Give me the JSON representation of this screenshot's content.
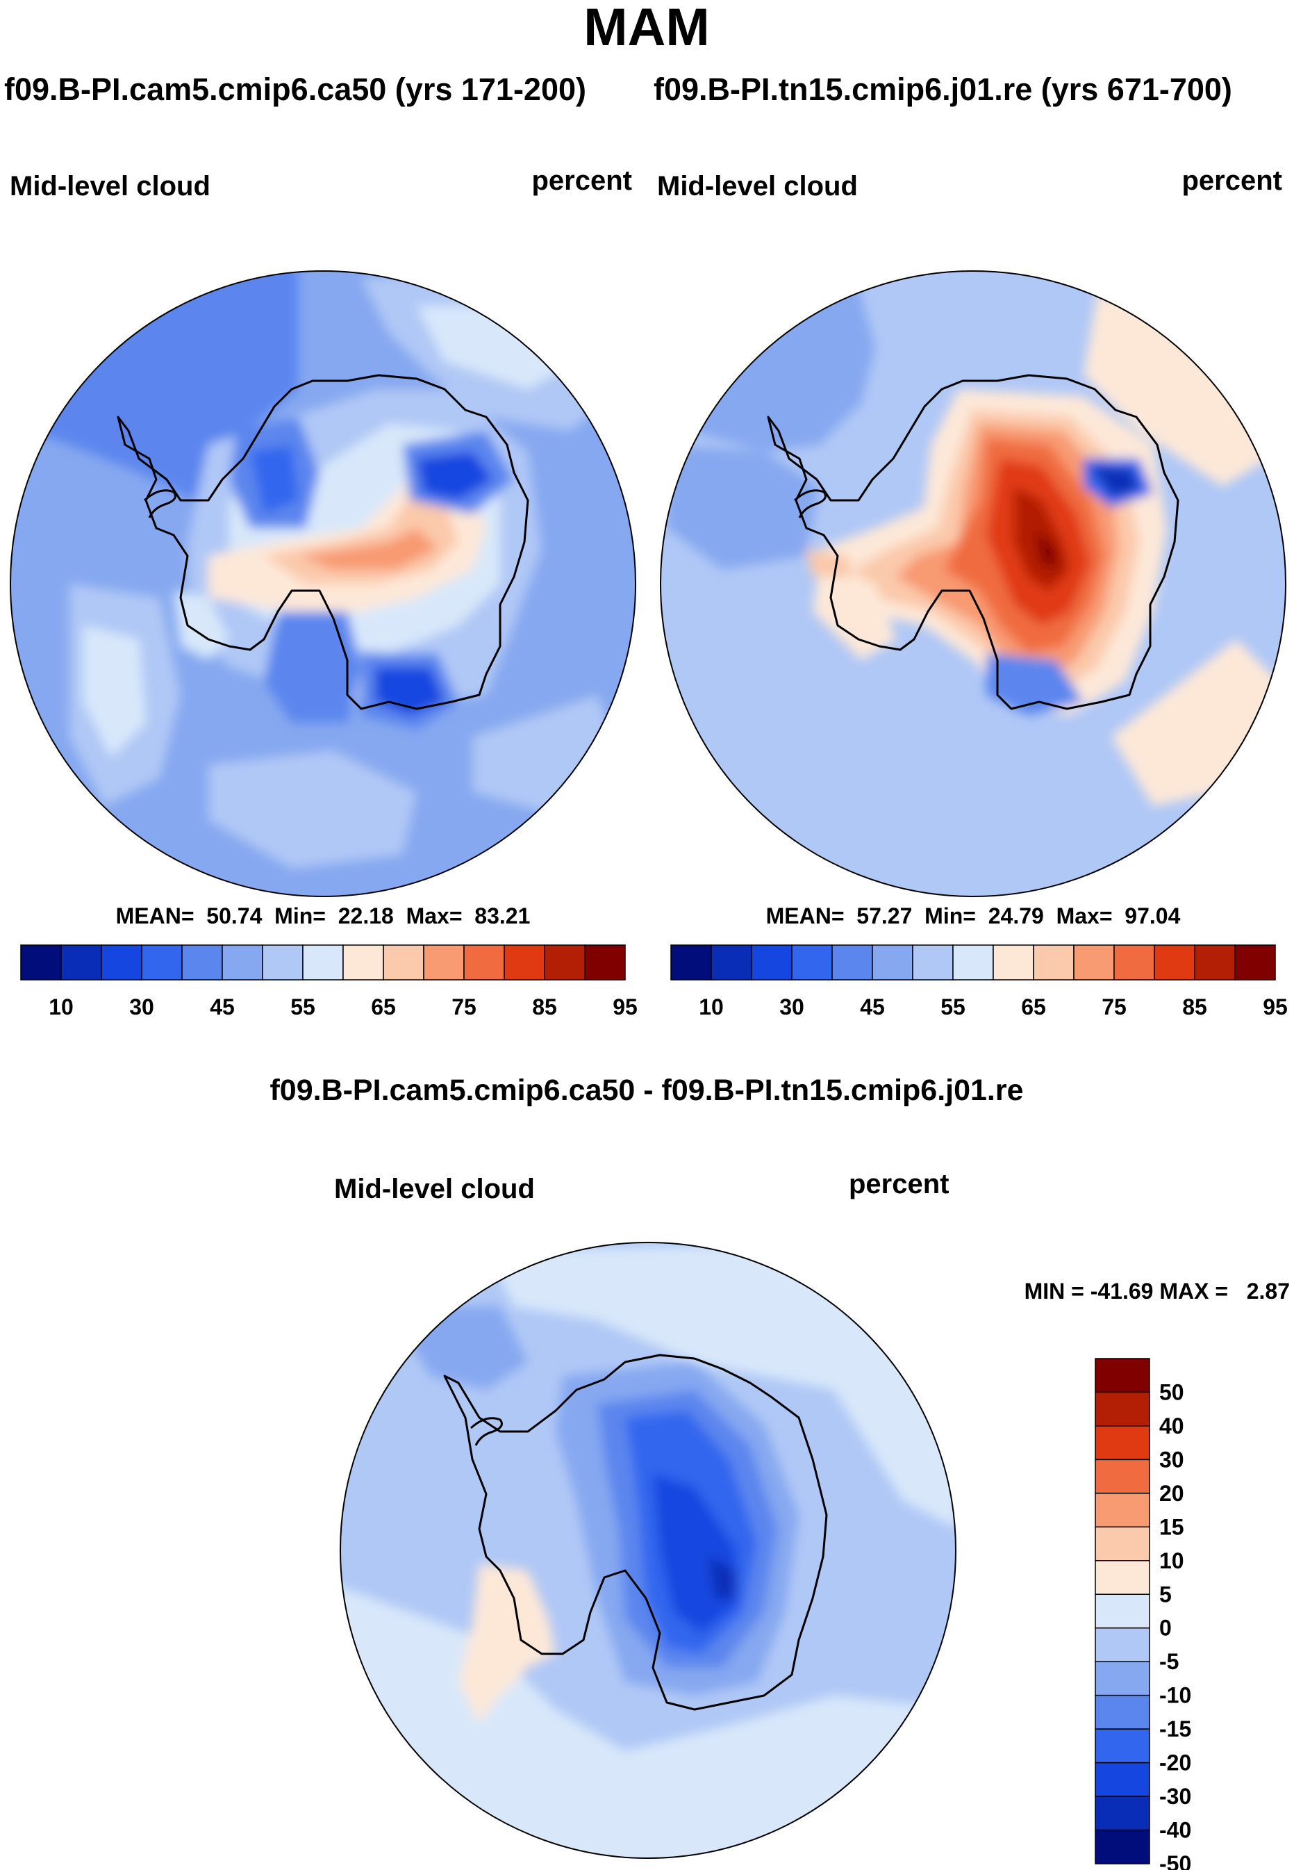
{
  "figure": {
    "season": "MAM",
    "header_left": "f09.B-PI.cam5.cmip6.ca50 (yrs 171-200)",
    "header_right": "f09.B-PI.tn15.cmip6.j01.re (yrs 671-700)",
    "diff_title": "f09.B-PI.cam5.cmip6.ca50 - f09.B-PI.tn15.cmip6.j01.re"
  },
  "panels": [
    {
      "id": "left",
      "variable": "Mid-level cloud",
      "units": "percent",
      "stats_label": "MEAN=  50.74  Min=  22.18  Max=  83.21",
      "mean": 50.74,
      "min": 22.18,
      "max": 83.21
    },
    {
      "id": "right",
      "variable": "Mid-level cloud",
      "units": "percent",
      "stats_label": "MEAN=  57.27  Min=  24.79  Max=  97.04",
      "mean": 57.27,
      "min": 24.79,
      "max": 97.04
    }
  ],
  "diff_panel": {
    "variable": "Mid-level cloud",
    "units": "percent",
    "stats_label": "MIN = -41.69 MAX =   2.87",
    "min": -41.69,
    "max": 2.87
  },
  "colorbar_main": {
    "colors": [
      "#000d7a",
      "#0a2db8",
      "#1646e0",
      "#3366ee",
      "#5b86ee",
      "#86a8f0",
      "#b0c8f6",
      "#d8e8fa",
      "#fde8d8",
      "#fbc9ab",
      "#f89a72",
      "#f06c40",
      "#e03a12",
      "#b31f05",
      "#800000"
    ],
    "tick_labels": [
      "10",
      "30",
      "45",
      "55",
      "65",
      "75",
      "85",
      "95"
    ]
  },
  "colorbar_diff": {
    "colors_top_to_bottom": [
      "#800000",
      "#b31f05",
      "#e03a12",
      "#f06c40",
      "#f89a72",
      "#fbc9ab",
      "#fde8d8",
      "#d8e8fa",
      "#b0c8f6",
      "#86a8f0",
      "#5b86ee",
      "#3366ee",
      "#1646e0",
      "#0a2db8",
      "#000d7a"
    ],
    "tick_labels": [
      "50",
      "40",
      "30",
      "20",
      "15",
      "10",
      "5",
      "0",
      "-5",
      "-10",
      "-15",
      "-20",
      "-30",
      "-40",
      "-50"
    ]
  }
}
